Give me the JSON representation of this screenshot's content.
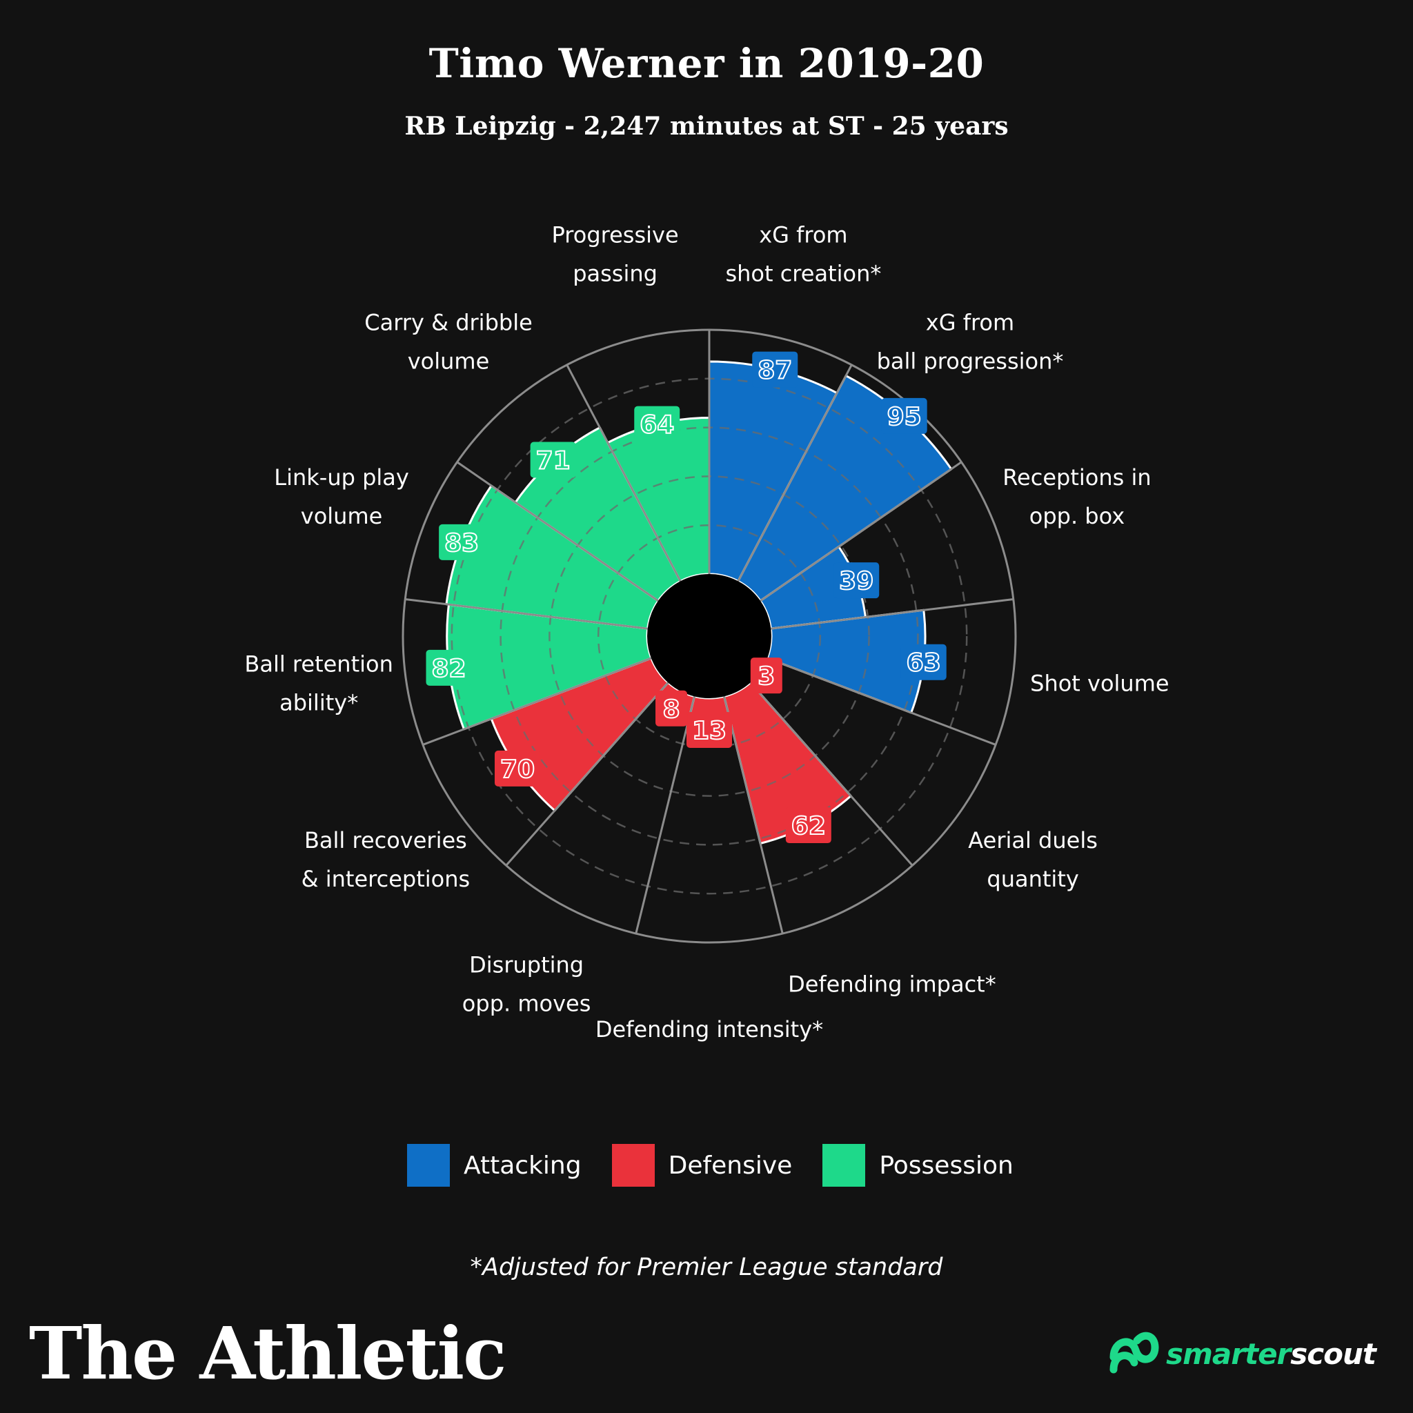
{
  "header": {
    "title": "Timo Werner in 2019-20",
    "subtitle": "RB Leipzig - 2,247 minutes at ST - 25 years"
  },
  "colors": {
    "background": "#121212",
    "Attacking": "#0f6fc6",
    "Defensive": "#ea323b",
    "Possession": "#1ed98a",
    "ring": "#8c8c8c",
    "grid": "#6b6b6b"
  },
  "chart_data": {
    "type": "polar-bar",
    "rlim": [
      0,
      100
    ],
    "grid": true,
    "gridlines": [
      20,
      40,
      60,
      80
    ],
    "categories": [
      {
        "label": "xG from\nshot creation*",
        "value": 87,
        "group": "Attacking"
      },
      {
        "label": "xG from\nball progression*",
        "value": 95,
        "group": "Attacking"
      },
      {
        "label": "Receptions in\nopp. box",
        "value": 39,
        "group": "Attacking"
      },
      {
        "label": "Shot volume",
        "value": 63,
        "group": "Attacking"
      },
      {
        "label": "Aerial duels\nquantity",
        "value": 3,
        "group": "Defensive"
      },
      {
        "label": "Defending impact*",
        "value": 62,
        "group": "Defensive"
      },
      {
        "label": "Defending intensity*",
        "value": 13,
        "group": "Defensive"
      },
      {
        "label": "Disrupting\nopp. moves",
        "value": 8,
        "group": "Defensive"
      },
      {
        "label": "Ball recoveries\n& interceptions",
        "value": 70,
        "group": "Defensive"
      },
      {
        "label": "Ball retention\nability*",
        "value": 82,
        "group": "Possession"
      },
      {
        "label": "Link-up play\nvolume",
        "value": 83,
        "group": "Possession"
      },
      {
        "label": "Carry & dribble\nvolume",
        "value": 71,
        "group": "Possession"
      },
      {
        "label": "Progressive\npassing",
        "value": 64,
        "group": "Possession"
      }
    ],
    "legend": {
      "placement": "bottom-center",
      "items": [
        "Attacking",
        "Defensive",
        "Possession"
      ]
    }
  },
  "footer": {
    "note": "*Adjusted for Premier League standard",
    "brand": "The Athletic",
    "partner_part1": "smarter",
    "partner_part2": "scout",
    "partner_icon": "smarterscout-logo-icon"
  }
}
